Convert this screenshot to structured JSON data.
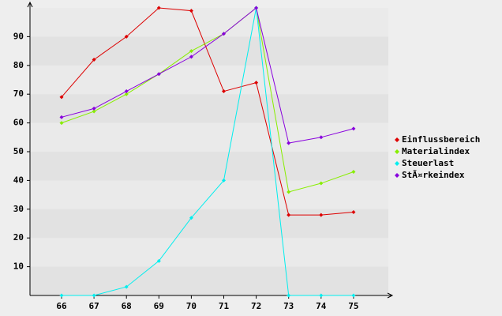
{
  "chart_data": {
    "type": "line",
    "categories": [
      "66",
      "67",
      "68",
      "69",
      "70",
      "71",
      "72",
      "73",
      "74",
      "75"
    ],
    "series": [
      {
        "name": "Einflussbereich",
        "color": "#dd0000",
        "values": [
          69,
          82,
          90,
          100,
          99,
          71,
          74,
          28,
          28,
          29
        ]
      },
      {
        "name": "Materialindex",
        "color": "#88ee00",
        "values": [
          60,
          64,
          70,
          77,
          85,
          91,
          100,
          36,
          39,
          43
        ]
      },
      {
        "name": "Steuerlast",
        "color": "#00eeee",
        "values": [
          0,
          0,
          3,
          12,
          27,
          40,
          100,
          0,
          0,
          0
        ]
      },
      {
        "name": "StÃ¤rkeindex",
        "color": "#8800dd",
        "values": [
          62,
          65,
          71,
          77,
          83,
          91,
          100,
          53,
          55,
          58
        ]
      }
    ],
    "ylim": [
      0,
      100
    ],
    "yticks": [
      10,
      20,
      30,
      40,
      50,
      60,
      70,
      80,
      90
    ],
    "grid": true,
    "legend": "right"
  }
}
